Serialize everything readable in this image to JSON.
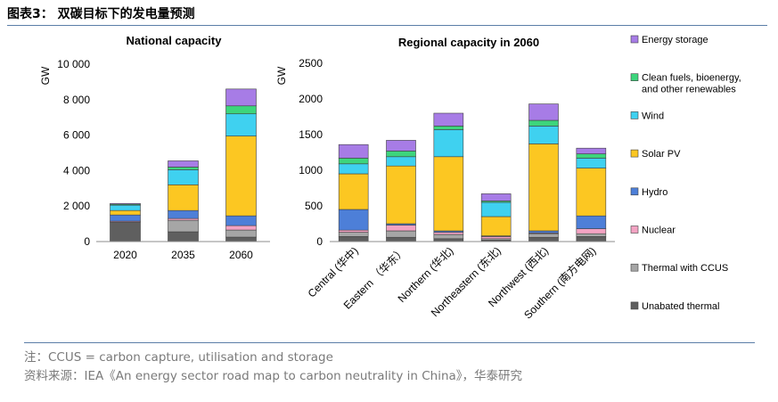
{
  "header": {
    "title": "图表3：  双碳目标下的发电量预测"
  },
  "footer": {
    "note": "注：CCUS = carbon capture, utilisation and storage",
    "source": "资料来源：IEA《An energy sector road map to carbon neutrality in China》，华泰研究"
  },
  "colors": {
    "Energy storage": "#a77ce6",
    "Clean fuels, bioenergy, and other renewables": "#3dd57c",
    "Wind": "#3fd1f0",
    "Solar PV": "#fcc722",
    "Hydro": "#4d7fd8",
    "Nuclear": "#f3a3c3",
    "Thermal with CCUS": "#a6a6a6",
    "Unabated thermal": "#5f5f5f"
  },
  "legend": [
    {
      "label": "Energy storage",
      "line2": ""
    },
    {
      "label": "Clean fuels, bioenergy,",
      "line2": "and other renewables"
    },
    {
      "label": "Wind",
      "line2": ""
    },
    {
      "label": "Solar PV",
      "line2": ""
    },
    {
      "label": "Hydro",
      "line2": ""
    },
    {
      "label": "Nuclear",
      "line2": ""
    },
    {
      "label": "Thermal with CCUS",
      "line2": ""
    },
    {
      "label": "Unabated thermal",
      "line2": ""
    }
  ],
  "chart_data": [
    {
      "type": "bar",
      "stacked": true,
      "title": "National capacity",
      "ylabel": "GW",
      "ylim": [
        0,
        10000
      ],
      "yticks": [
        "0",
        "2 000",
        "4 000",
        "6 000",
        "8 000",
        "10 000"
      ],
      "ytick_values": [
        0,
        2000,
        4000,
        6000,
        8000,
        10000
      ],
      "categories": [
        "2020",
        "2035",
        "2060"
      ],
      "series": [
        {
          "name": "Unabated thermal",
          "values": [
            1100,
            550,
            250
          ]
        },
        {
          "name": "Thermal with CCUS",
          "values": [
            0,
            650,
            400
          ]
        },
        {
          "name": "Nuclear",
          "values": [
            50,
            100,
            250
          ]
        },
        {
          "name": "Hydro",
          "values": [
            350,
            450,
            550
          ]
        },
        {
          "name": "Solar PV",
          "values": [
            250,
            1450,
            4500
          ]
        },
        {
          "name": "Wind",
          "values": [
            300,
            850,
            1250
          ]
        },
        {
          "name": "Clean fuels, bioenergy, and other renewables",
          "values": [
            50,
            150,
            450
          ]
        },
        {
          "name": "Energy storage",
          "values": [
            50,
            350,
            950
          ]
        }
      ]
    },
    {
      "type": "bar",
      "stacked": true,
      "title": "Regional capacity in 2060",
      "ylabel": "GW",
      "ylim": [
        0,
        2500
      ],
      "yticks": [
        "0",
        "500",
        "1000",
        "1500",
        "2000",
        "2500"
      ],
      "ytick_values": [
        0,
        500,
        1000,
        1500,
        2000,
        2500
      ],
      "categories": [
        "Central (华中)",
        "Eastern （华东）",
        "Northern (华北)",
        "Northeastern (东北)",
        "Northwest (西北)",
        "Southern (南方电网)"
      ],
      "series": [
        {
          "name": "Unabated thermal",
          "values": [
            70,
            60,
            40,
            20,
            60,
            70
          ]
        },
        {
          "name": "Thermal with CCUS",
          "values": [
            60,
            90,
            60,
            20,
            50,
            40
          ]
        },
        {
          "name": "Nuclear",
          "values": [
            30,
            80,
            30,
            30,
            10,
            70
          ]
        },
        {
          "name": "Hydro",
          "values": [
            290,
            20,
            20,
            10,
            30,
            180
          ]
        },
        {
          "name": "Solar PV",
          "values": [
            500,
            810,
            1040,
            270,
            1220,
            670
          ]
        },
        {
          "name": "Wind",
          "values": [
            140,
            130,
            380,
            200,
            250,
            140
          ]
        },
        {
          "name": "Clean fuels, bioenergy, and other renewables",
          "values": [
            80,
            80,
            50,
            20,
            80,
            60
          ]
        },
        {
          "name": "Energy storage",
          "values": [
            190,
            150,
            180,
            100,
            230,
            80
          ]
        }
      ]
    }
  ]
}
